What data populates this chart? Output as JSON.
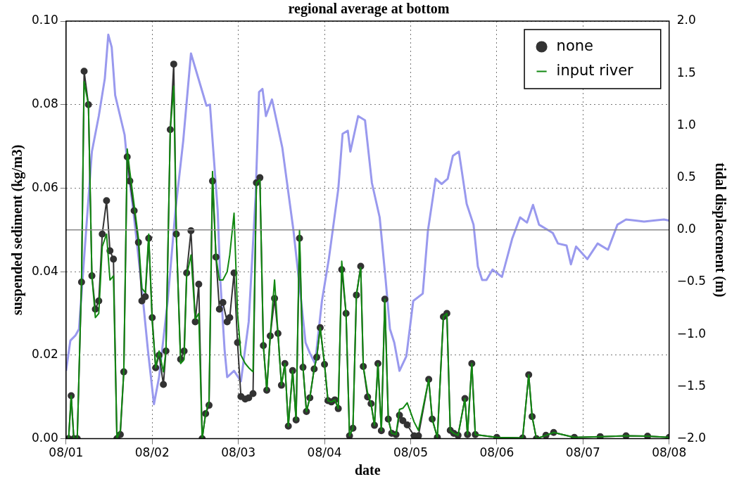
{
  "chart_data": {
    "type": "line",
    "title": "regional average at bottom",
    "xlabel": "date",
    "ylabel": "suspended sediment (kg/m3)",
    "y2label": "tidal displacement (m)",
    "x": [
      "--08-01T00:43",
      "--08-01T01:26",
      "--08-01T02:10",
      "--08-01T03:07",
      "--08-01T04:19",
      "--08-01T05:02",
      "--08-01T06:14",
      "--08-01T07:12",
      "--08-01T08:10",
      "--08-01T09:07",
      "--08-01T10:05",
      "--08-01T11:17",
      "--08-01T12:14",
      "--08-01T13:12",
      "--08-01T14:10",
      "--08-01T15:07",
      "--08-01T16:05",
      "--08-01T17:02",
      "--08-01T17:46",
      "--08-01T18:58",
      "--08-01T20:10",
      "--08-01T21:07",
      "--08-01T22:05",
      "--08-01T23:02",
      "--08-02T00:00",
      "--08-02T00:58",
      "--08-02T01:55",
      "--08-02T03:07",
      "--08-02T03:50",
      "--08-02T05:02",
      "--08-02T06:00",
      "--08-02T06:43",
      "--08-02T07:55",
      "--08-02T08:53",
      "--08-02T09:36",
      "--08-02T10:48",
      "--08-02T12:00",
      "--08-02T12:58",
      "--08-02T13:55",
      "--08-02T14:53",
      "--08-02T15:50",
      "--08-02T16:48",
      "--08-02T17:46",
      "--08-02T18:43",
      "--08-02T19:41",
      "--08-02T20:53",
      "--08-02T21:36",
      "--08-02T22:48",
      "--08-02T23:46",
      "--08-03T00:43",
      "--08-03T01:55",
      "--08-03T02:53",
      "--08-03T04:05",
      "--08-03T05:02",
      "--08-03T06:00",
      "--08-03T06:58",
      "--08-03T07:55",
      "--08-03T08:53",
      "--08-03T10:05",
      "--08-03T11:02",
      "--08-03T12:00",
      "--08-03T12:58",
      "--08-03T13:55",
      "--08-03T15:07",
      "--08-03T16:05",
      "--08-03T17:02",
      "--08-03T18:00",
      "--08-03T18:58",
      "--08-03T19:55",
      "--08-03T21:07",
      "--08-03T21:50",
      "--08-03T22:48",
      "--08-04T00:00",
      "--08-04T00:58",
      "--08-04T01:55",
      "--08-04T02:53",
      "--08-04T03:50",
      "--08-04T04:48",
      "--08-04T06:00",
      "--08-04T06:58",
      "--08-04T07:55",
      "--08-04T08:53",
      "--08-04T10:05",
      "--08-04T10:48",
      "--08-04T12:00",
      "--08-04T12:58",
      "--08-04T13:55",
      "--08-04T14:53",
      "--08-04T15:50",
      "--08-04T16:48",
      "--08-04T17:46",
      "--08-04T18:43",
      "--08-04T19:55",
      "--08-04T20:53",
      "--08-04T21:50",
      "--08-04T23:02",
      "--08-05T00:58",
      "--08-05T02:10",
      "--08-05T05:02",
      "--08-05T06:00",
      "--08-05T07:26",
      "--08-05T09:07",
      "--08-05T10:05",
      "--08-05T11:02",
      "--08-05T12:00",
      "--08-05T13:12",
      "--08-05T15:07",
      "--08-05T15:50",
      "--08-05T17:02",
      "--08-05T18:00",
      "--08-06T00:00",
      "--08-06T07:12",
      "--08-06T08:53",
      "--08-06T09:50",
      "--08-06T11:02",
      "--08-06T13:41",
      "--08-06T15:50",
      "--08-06T21:36",
      "--08-07T04:48",
      "--08-07T12:00",
      "--08-07T18:00",
      "--08-08T00:00"
    ],
    "series": [
      {
        "name": "none",
        "color": "#333333",
        "marker": "circle",
        "values": [
          0,
          0.0103,
          0,
          0,
          0.0375,
          0.088,
          0.08,
          0.039,
          0.031,
          0.033,
          0.049,
          0.057,
          0.045,
          0.043,
          0,
          0.001,
          0.016,
          0.0675,
          0.0617,
          0.0546,
          0.047,
          0.033,
          0.034,
          0.048,
          0.029,
          0.017,
          0.02,
          0.013,
          0.021,
          0.074,
          0.0897,
          0.049,
          0.019,
          0.021,
          0.0397,
          0.0498,
          0.028,
          0.037,
          0,
          0.006,
          0.008,
          0.0617,
          0.0435,
          0.031,
          0.0326,
          0.028,
          0.029,
          0.0397,
          0.023,
          0.0101,
          0.0095,
          0.0098,
          0.0108,
          0.0613,
          0.0625,
          0.0223,
          0.0116,
          0.0246,
          0.0336,
          0.0252,
          0.0128,
          0.018,
          0.003,
          0.0163,
          0.0045,
          0.048,
          0.0171,
          0.0065,
          0.0098,
          0.0167,
          0.0195,
          0.0266,
          0.0178,
          0.0091,
          0.0088,
          0.0093,
          0.0072,
          0.0405,
          0.03,
          0.0007,
          0.0025,
          0.0344,
          0.0413,
          0.0173,
          0.01,
          0.0084,
          0.0032,
          0.018,
          0.0019,
          0.0334,
          0.0047,
          0.0013,
          0.001,
          0.0056,
          0.0043,
          0.0033,
          0.0007,
          0.0007,
          0.0142,
          0.0047,
          0.0003,
          0.0292,
          0.03,
          0.002,
          0.0013,
          0.0008,
          0.0096,
          0.001,
          0.018,
          0.001,
          0.0003,
          0.0002,
          0.0153,
          0.0053,
          0,
          0.0008,
          0.0015,
          0.0003,
          0.0005,
          0.0007,
          0.0006,
          0.0003
        ]
      },
      {
        "name": "input river",
        "color": "#118811",
        "marker": "none",
        "values": [
          0,
          0.0103,
          0,
          0,
          0.038,
          0.0855,
          0.08,
          0.039,
          0.029,
          0.03,
          0.046,
          0.049,
          0.038,
          0.039,
          0,
          0.002,
          0.016,
          0.0694,
          0.064,
          0.056,
          0.048,
          0.036,
          0.035,
          0.049,
          0.028,
          0.017,
          0.021,
          0.016,
          0.021,
          0.074,
          0.0844,
          0.049,
          0.018,
          0.019,
          0.039,
          0.044,
          0.0286,
          0.03,
          0,
          0.006,
          0.009,
          0.064,
          0.0435,
          0.038,
          0.038,
          0.04,
          0.044,
          0.054,
          0.03,
          0.02,
          0.018,
          0.017,
          0.016,
          0.0613,
          0.062,
          0.0223,
          0.0116,
          0.0246,
          0.038,
          0.0252,
          0.0128,
          0.018,
          0.003,
          0.0163,
          0.0045,
          0.05,
          0.0171,
          0.0065,
          0.0098,
          0.0167,
          0.0195,
          0.0266,
          0.0178,
          0.0091,
          0.0088,
          0.0093,
          0.0072,
          0.0425,
          0.03,
          0.0007,
          0.0025,
          0.0344,
          0.041,
          0.0173,
          0.011,
          0.0084,
          0.0032,
          0.018,
          0.0019,
          0.0334,
          0.0047,
          0.0013,
          0.001,
          0.007,
          0.0073,
          0.0086,
          0.004,
          0.002,
          0.0142,
          0.0047,
          0.0003,
          0.0292,
          0.03,
          0.002,
          0.0013,
          0.0008,
          0.0096,
          0.001,
          0.018,
          0.001,
          0.0003,
          0.0002,
          0.0153,
          0.0053,
          0,
          0.0008,
          0.0015,
          0.0003,
          0.0005,
          0.0007,
          0.0006,
          0.0003
        ]
      },
      {
        "color": "#9999ee",
        "marker": "none",
        "axis": "y2",
        "x": [
          "--08-01T00:00",
          "--08-01T01:12",
          "--08-01T02:38",
          "--08-01T03:36",
          "--08-01T05:17",
          "--08-01T07:12",
          "--08-01T09:07",
          "--08-01T10:48",
          "--08-01T11:46",
          "--08-01T12:43",
          "--08-01T13:41",
          "--08-01T16:19",
          "--08-01T17:02",
          "--08-01T18:43",
          "--08-01T20:53",
          "--08-01T22:48",
          "--08-02T00:29",
          "--08-02T01:55",
          "--08-02T04:19",
          "--08-02T06:29",
          "--08-02T08:38",
          "--08-02T10:48",
          "--08-02T15:07",
          "--08-02T16:05",
          "--08-02T18:14",
          "--08-02T18:58",
          "--08-02T20:10",
          "--08-02T20:53",
          "--08-02T22:48",
          "--08-03T00:43",
          "--08-03T02:53",
          "--08-03T04:48",
          "--08-03T05:46",
          "--08-03T06:43",
          "--08-03T07:41",
          "--08-03T09:22",
          "--08-03T12:14",
          "--08-03T15:22",
          "--08-03T17:17",
          "--08-03T18:43",
          "--08-03T19:55",
          "--08-03T21:22",
          "--08-03T23:17",
          "--08-04T01:12",
          "--08-04T03:50",
          "--08-04T05:02",
          "--08-04T06:29",
          "--08-04T07:12",
          "--08-04T09:22",
          "--08-04T11:17",
          "--08-04T13:12",
          "--08-04T15:22",
          "--08-04T17:02",
          "--08-04T18:14",
          "--08-04T19:26",
          "--08-04T20:53",
          "--08-04T22:48",
          "--08-05T00:43",
          "--08-05T03:22",
          "--08-05T04:48",
          "--08-05T06:58",
          "--08-05T08:38",
          "--08-05T10:19",
          "--08-05T11:46",
          "--08-05T13:26",
          "--08-05T15:36",
          "--08-05T17:31",
          "--08-05T18:43",
          "--08-05T19:55",
          "--08-05T21:07",
          "--08-05T22:48",
          "--08-06T01:26",
          "--08-06T04:19",
          "--08-06T06:29",
          "--08-06T08:24",
          "--08-06T10:05",
          "--08-06T11:46",
          "--08-06T13:41",
          "--08-06T15:36",
          "--08-06T17:02",
          "--08-06T19:26",
          "--08-06T20:38",
          "--08-06T22:05",
          "--08-07T01:12",
          "--08-07T04:05",
          "--08-07T06:58",
          "--08-07T09:36",
          "--08-07T12:00",
          "--08-07T14:38",
          "--08-07T17:02",
          "--08-07T19:41",
          "--08-07T22:34",
          "--08-08T00:00"
        ],
        "values": [
          -1.35,
          -1.06,
          -1.01,
          -0.95,
          -0.15,
          0.75,
          1.09,
          1.45,
          1.87,
          1.75,
          1.29,
          0.91,
          0.65,
          0.19,
          -0.48,
          -1.15,
          -1.67,
          -1.41,
          -0.68,
          0.19,
          0.85,
          1.69,
          1.19,
          1.2,
          0.19,
          -0.48,
          -1.15,
          -1.41,
          -1.35,
          -1.45,
          -0.88,
          0.32,
          1.32,
          1.35,
          1.09,
          1.25,
          0.79,
          -0.01,
          -0.61,
          -1.08,
          -1.18,
          -1.28,
          -0.68,
          -0.28,
          0.39,
          0.92,
          0.95,
          0.75,
          1.09,
          1.05,
          0.45,
          0.12,
          -0.48,
          -0.95,
          -1.08,
          -1.35,
          -1.21,
          -0.68,
          -0.61,
          -0.01,
          0.49,
          0.44,
          0.49,
          0.71,
          0.75,
          0.25,
          0.05,
          -0.35,
          -0.48,
          -0.48,
          -0.38,
          -0.45,
          -0.08,
          0.12,
          0.07,
          0.24,
          0.05,
          0.01,
          -0.03,
          -0.13,
          -0.15,
          -0.33,
          -0.16,
          -0.28,
          -0.13,
          -0.19,
          0.05,
          0.1,
          0.09,
          0.08,
          0.09,
          0.1,
          0.09
        ]
      }
    ],
    "xlim": [
      "--08-01",
      "--08-08"
    ],
    "xticks": [
      {
        "value": "--08-01",
        "label": "08/01"
      },
      {
        "value": "--08-02",
        "label": "08/02"
      },
      {
        "value": "--08-03",
        "label": "08/03"
      },
      {
        "value": "--08-04",
        "label": "08/04"
      },
      {
        "value": "--08-05",
        "label": "08/05"
      },
      {
        "value": "--08-06",
        "label": "08/06"
      },
      {
        "value": "--08-07",
        "label": "08/07"
      },
      {
        "value": "--08-08",
        "label": "08/08"
      }
    ],
    "ylim": [
      0,
      0.1
    ],
    "yticks": [
      {
        "value": 0,
        "label": "0.00"
      },
      {
        "value": 0.02,
        "label": "0.02"
      },
      {
        "value": 0.04,
        "label": "0.04"
      },
      {
        "value": 0.06,
        "label": "0.06"
      },
      {
        "value": 0.08,
        "label": "0.08"
      },
      {
        "value": 0.1,
        "label": "0.10"
      }
    ],
    "y2lim": [
      -2,
      2
    ],
    "y2ticks": [
      {
        "value": -2,
        "label": "−2.0"
      },
      {
        "value": -1.5,
        "label": "−1.5"
      },
      {
        "value": -1,
        "label": "−1.0"
      },
      {
        "value": -0.5,
        "label": "−0.5"
      },
      {
        "value": 0,
        "label": "0.0"
      },
      {
        "value": 0.5,
        "label": "0.5"
      },
      {
        "value": 1,
        "label": "1.0"
      },
      {
        "value": 1.5,
        "label": "1.5"
      },
      {
        "value": 2,
        "label": "2.0"
      }
    ],
    "ref_lines": [
      {
        "axis": "y2",
        "value": 0,
        "color": "#888888"
      }
    ],
    "grid": true,
    "legend": "top right",
    "line_style": "solid"
  }
}
